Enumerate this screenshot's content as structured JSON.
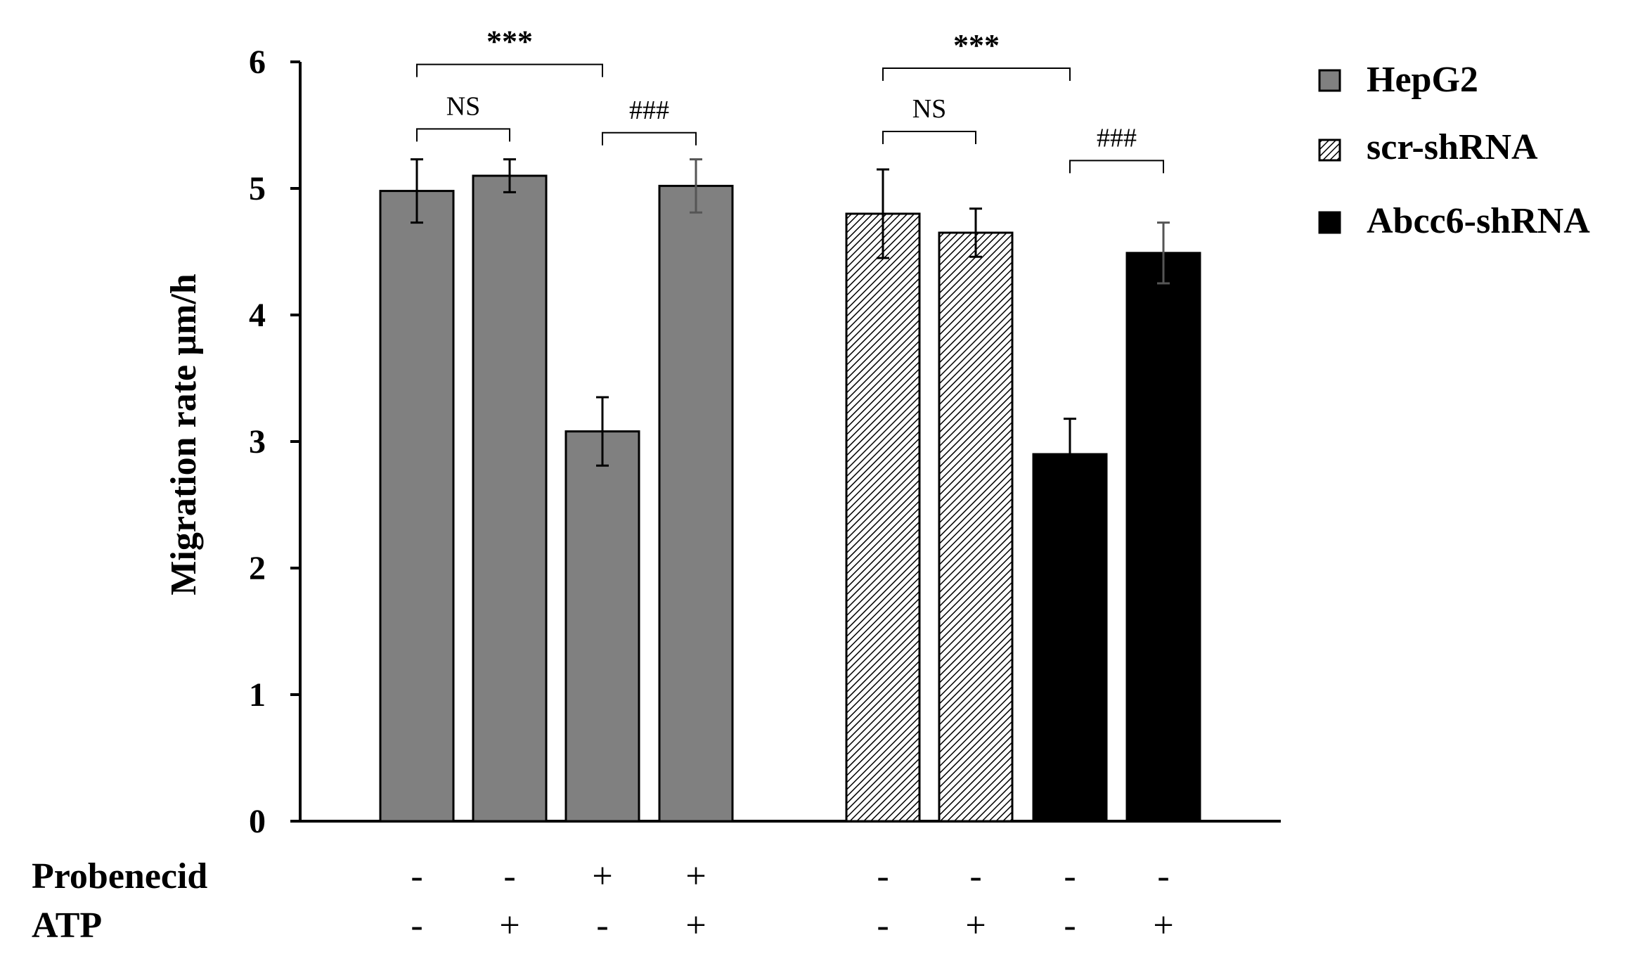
{
  "chart_data": {
    "type": "bar",
    "ylabel": "Migration rate µm/h",
    "xlabel": "",
    "ylim": [
      0,
      6
    ],
    "yticks": [
      "0",
      "1",
      "2",
      "3",
      "4",
      "5",
      "6"
    ],
    "grid": false,
    "legend_position": "top-right",
    "legend": [
      {
        "name": "HepG2",
        "style": "solid",
        "color": "#808080"
      },
      {
        "name": "scr-shRNA",
        "style": "hatched",
        "color": "#ffffff"
      },
      {
        "name": "Abcc6-shRNA",
        "style": "solid",
        "color": "#000000"
      }
    ],
    "bars": [
      {
        "series": "HepG2",
        "value": 4.98,
        "error": 0.25,
        "probenecid": "-",
        "atp": "-"
      },
      {
        "series": "HepG2",
        "value": 5.1,
        "error": 0.13,
        "probenecid": "-",
        "atp": "+"
      },
      {
        "series": "HepG2",
        "value": 3.08,
        "error": 0.27,
        "probenecid": "+",
        "atp": "-"
      },
      {
        "series": "HepG2",
        "value": 5.02,
        "error": 0.21,
        "probenecid": "+",
        "atp": "+"
      },
      {
        "series": "scr-shRNA",
        "value": 4.8,
        "error": 0.35,
        "probenecid": "-",
        "atp": "-"
      },
      {
        "series": "scr-shRNA",
        "value": 4.65,
        "error": 0.19,
        "probenecid": "-",
        "atp": "+"
      },
      {
        "series": "Abcc6-shRNA",
        "value": 2.9,
        "error": 0.28,
        "probenecid": "-",
        "atp": "-"
      },
      {
        "series": "Abcc6-shRNA",
        "value": 4.49,
        "error": 0.24,
        "probenecid": "-",
        "atp": "+"
      }
    ],
    "row_labels": {
      "probenecid": "Probenecid",
      "atp": "ATP"
    },
    "annotations": [
      {
        "text": "***",
        "from_bar": 0,
        "to_bar": 2,
        "y": 5.98
      },
      {
        "text": "NS",
        "from_bar": 0,
        "to_bar": 1,
        "y": 5.47
      },
      {
        "text": "###",
        "from_bar": 2,
        "to_bar": 3,
        "y": 5.44
      },
      {
        "text": "***",
        "from_bar": 4,
        "to_bar": 6,
        "y": 5.95
      },
      {
        "text": "NS",
        "from_bar": 4,
        "to_bar": 5,
        "y": 5.45
      },
      {
        "text": "###",
        "from_bar": 6,
        "to_bar": 7,
        "y": 5.22
      }
    ]
  }
}
